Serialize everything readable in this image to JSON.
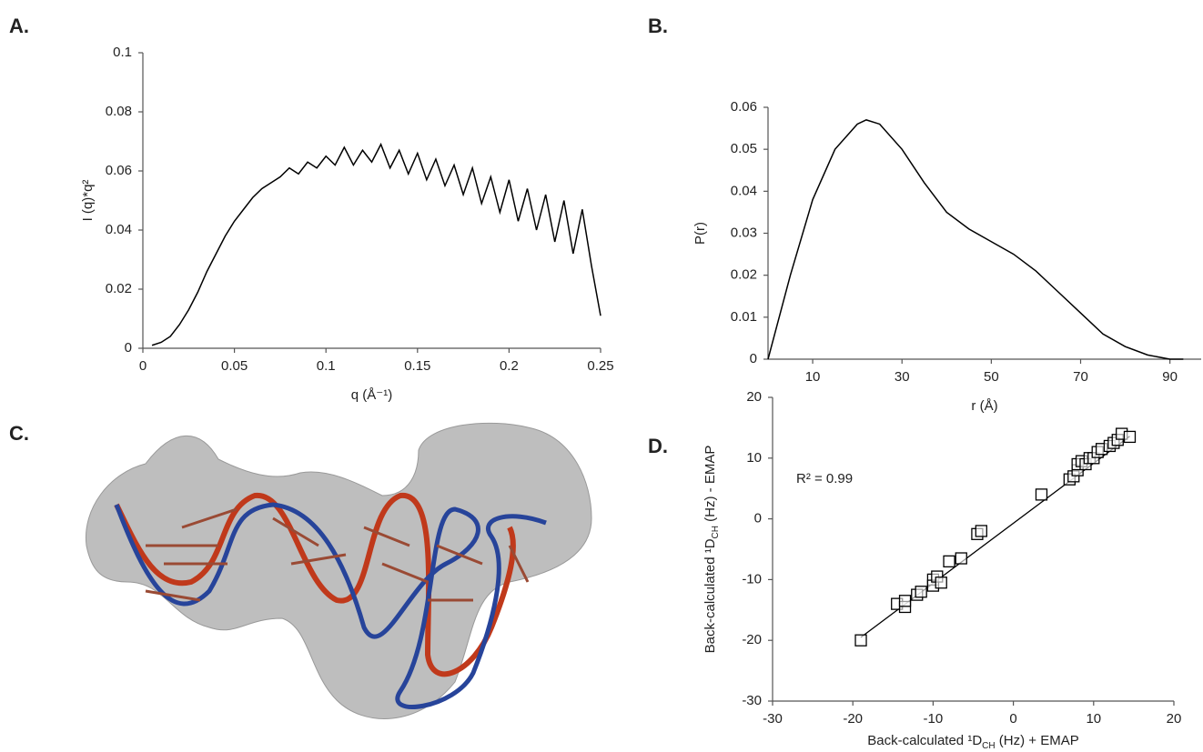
{
  "chart_data": [
    {
      "panel_label": "A.",
      "type": "line",
      "color": "#000000",
      "xlabel": "q (Å⁻¹)",
      "ylabel": "I (q)*q²",
      "xlim": [
        0,
        0.25
      ],
      "ylim": [
        0,
        0.1
      ],
      "xticks": [
        0,
        0.05,
        0.1,
        0.15,
        0.2,
        0.25
      ],
      "yticks": [
        0,
        0.02,
        0.04,
        0.06,
        0.08,
        0.1
      ],
      "x": [
        0.005,
        0.01,
        0.015,
        0.02,
        0.025,
        0.03,
        0.035,
        0.04,
        0.045,
        0.05,
        0.055,
        0.06,
        0.065,
        0.07,
        0.075,
        0.08,
        0.085,
        0.09,
        0.095,
        0.1,
        0.105,
        0.11,
        0.115,
        0.12,
        0.125,
        0.13,
        0.135,
        0.14,
        0.145,
        0.15,
        0.155,
        0.16,
        0.165,
        0.17,
        0.175,
        0.18,
        0.185,
        0.19,
        0.195,
        0.2,
        0.205,
        0.21,
        0.215,
        0.22,
        0.225,
        0.23,
        0.235,
        0.24,
        0.245,
        0.25
      ],
      "values": [
        0.001,
        0.002,
        0.004,
        0.008,
        0.013,
        0.019,
        0.026,
        0.032,
        0.038,
        0.043,
        0.047,
        0.051,
        0.054,
        0.056,
        0.058,
        0.061,
        0.059,
        0.063,
        0.061,
        0.065,
        0.062,
        0.068,
        0.062,
        0.067,
        0.063,
        0.069,
        0.061,
        0.067,
        0.059,
        0.066,
        0.057,
        0.064,
        0.055,
        0.062,
        0.052,
        0.061,
        0.049,
        0.058,
        0.046,
        0.057,
        0.043,
        0.054,
        0.04,
        0.052,
        0.036,
        0.05,
        0.032,
        0.047,
        0.028,
        0.011
      ]
    },
    {
      "panel_label": "B.",
      "type": "line",
      "color": "#000000",
      "xlabel": "r (Å)",
      "ylabel": "P(r)",
      "xlim": [
        0,
        97
      ],
      "ylim": [
        0,
        0.06
      ],
      "xticks": [
        10,
        30,
        50,
        70,
        90
      ],
      "yticks": [
        0,
        0.01,
        0.02,
        0.03,
        0.04,
        0.05,
        0.06
      ],
      "x": [
        0,
        5,
        10,
        15,
        20,
        22,
        25,
        30,
        35,
        40,
        45,
        50,
        55,
        60,
        65,
        70,
        75,
        80,
        85,
        90,
        93
      ],
      "values": [
        0,
        0.02,
        0.038,
        0.05,
        0.056,
        0.057,
        0.056,
        0.05,
        0.042,
        0.035,
        0.031,
        0.028,
        0.025,
        0.021,
        0.016,
        0.011,
        0.006,
        0.003,
        0.001,
        0,
        0
      ]
    },
    {
      "panel_label": "C.",
      "type": "image"
    },
    {
      "panel_label": "D.",
      "type": "scatter",
      "color": "#000000",
      "xlabel": [
        "Back-calculated ¹D",
        "CH",
        " (Hz) + EMAP"
      ],
      "ylabel": [
        "Back-calculated ¹D",
        "CH",
        " (Hz) - EMAP"
      ],
      "annotation": "R² = 0.99",
      "xlim": [
        -30,
        20
      ],
      "ylim": [
        -30,
        20
      ],
      "xticks": [
        -30,
        -20,
        -10,
        0,
        10,
        20
      ],
      "yticks": [
        -30,
        -20,
        -10,
        0,
        10,
        20
      ],
      "x": [
        -19,
        -14.5,
        -13.5,
        -13.5,
        -12,
        -11.5,
        -10,
        -10,
        -9.5,
        -9,
        -8,
        -6.5,
        -4.5,
        -4,
        3.5,
        7,
        7.5,
        8,
        8,
        8.5,
        9,
        9.5,
        10,
        10.5,
        11,
        12,
        12.5,
        13,
        13.5,
        14.5
      ],
      "values": [
        -20,
        -14,
        -14.5,
        -13.5,
        -12.5,
        -12,
        -10,
        -11,
        -9.5,
        -10.5,
        -7,
        -6.5,
        -2.5,
        -2,
        4,
        6.5,
        7,
        8,
        9,
        9.5,
        9,
        10,
        10,
        11,
        11.5,
        12,
        12.5,
        13,
        14,
        13.5
      ],
      "trendline": {
        "x": [
          -19,
          14.5
        ],
        "values": [
          -19.5,
          13.6
        ]
      }
    }
  ]
}
